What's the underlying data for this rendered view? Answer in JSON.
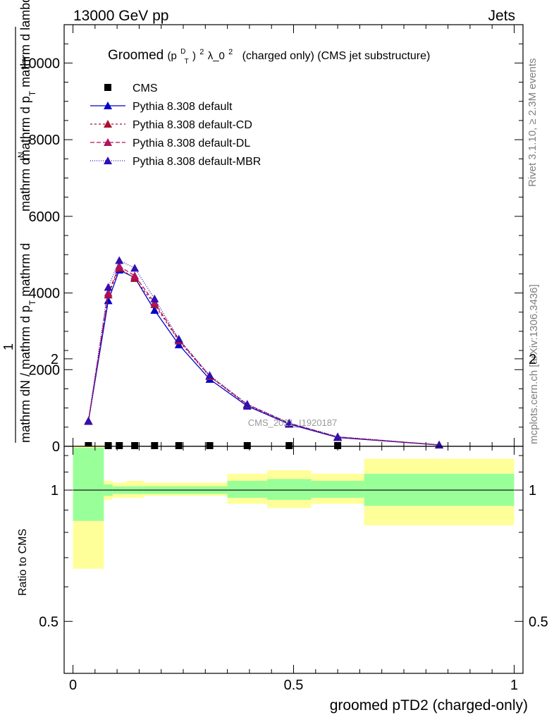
{
  "header": {
    "left": "13000 GeV pp",
    "right": "Jets"
  },
  "side_labels": {
    "rivet": "Rivet 3.1.10, ≥ 2.3M events",
    "mcplots": "mcplots.cern.ch [arXiv:1306.3436]"
  },
  "watermark": "CMS_2021_I1920187",
  "chart_data": [
    {
      "type": "line",
      "title_prefix": "Groomed",
      "title_math": "(p",
      "title_sup": "D",
      "title_sub": "T",
      "title_close": ")",
      "title_exp": "2",
      "title_lambda": "λ_0",
      "title_exp2": "2",
      "title_rest": "(charged only) (CMS jet substructure)",
      "ylabel_top_a": "mathrm d",
      "ylabel_top_b": "N",
      "ylabel_top_c": "mathrm d p",
      "ylabel_top_d": "T",
      "ylabel_top_e": " mathrm d lambda",
      "ylabel_one": "1",
      "ylabel_bottom": "mathrm dN / mathrm d p",
      "ylabel_bottom_sub": "T",
      "ylabel_bottom_tail": " mathrm d",
      "ylim": [
        0,
        11000
      ],
      "yticks": [
        0,
        2000,
        4000,
        6000,
        8000,
        10000
      ],
      "ytick_labels": [
        "0",
        "2000",
        "4000",
        "6000",
        "8000",
        "10000"
      ],
      "xlim": [
        -0.02,
        1.02
      ],
      "series": [
        {
          "name": "CMS",
          "color": "#000000",
          "marker": "square",
          "points": [
            [
              0.035,
              0
            ],
            [
              0.08,
              0
            ],
            [
              0.105,
              0
            ],
            [
              0.14,
              0
            ],
            [
              0.185,
              0
            ],
            [
              0.24,
              0
            ],
            [
              0.31,
              0
            ],
            [
              0.395,
              0
            ],
            [
              0.49,
              0
            ],
            [
              0.6,
              0
            ]
          ]
        },
        {
          "name": "Pythia 8.308 default",
          "color": "#0000cc",
          "dash": "",
          "marker": "triangle",
          "points": [
            [
              0.035,
              650
            ],
            [
              0.08,
              3800
            ],
            [
              0.105,
              4600
            ],
            [
              0.14,
              4400
            ],
            [
              0.185,
              3550
            ],
            [
              0.24,
              2650
            ],
            [
              0.31,
              1750
            ],
            [
              0.395,
              1050
            ],
            [
              0.49,
              580
            ],
            [
              0.6,
              230
            ],
            [
              0.83,
              35
            ]
          ]
        },
        {
          "name": "Pythia 8.308 default-CD",
          "color": "#aa1030",
          "dash": "3,3",
          "marker": "triangle",
          "points": [
            [
              0.035,
              660
            ],
            [
              0.08,
              3950
            ],
            [
              0.105,
              4650
            ],
            [
              0.14,
              4380
            ],
            [
              0.185,
              3700
            ],
            [
              0.24,
              2750
            ],
            [
              0.31,
              1820
            ],
            [
              0.395,
              1080
            ],
            [
              0.49,
              600
            ],
            [
              0.6,
              240
            ],
            [
              0.83,
              36
            ]
          ]
        },
        {
          "name": "Pythia 8.308 default-DL",
          "color": "#b0145a",
          "dash": "6,3",
          "marker": "triangle",
          "points": [
            [
              0.035,
              655
            ],
            [
              0.08,
              4000
            ],
            [
              0.105,
              4700
            ],
            [
              0.14,
              4450
            ],
            [
              0.185,
              3750
            ],
            [
              0.24,
              2780
            ],
            [
              0.31,
              1830
            ],
            [
              0.395,
              1090
            ],
            [
              0.49,
              605
            ],
            [
              0.6,
              245
            ],
            [
              0.83,
              37
            ]
          ]
        },
        {
          "name": "Pythia 8.308 default-MBR",
          "color": "#3010b0",
          "dash": "1,2",
          "marker": "triangle",
          "points": [
            [
              0.035,
              665
            ],
            [
              0.08,
              4150
            ],
            [
              0.105,
              4850
            ],
            [
              0.14,
              4650
            ],
            [
              0.185,
              3850
            ],
            [
              0.24,
              2800
            ],
            [
              0.31,
              1850
            ],
            [
              0.395,
              1100
            ],
            [
              0.49,
              610
            ],
            [
              0.6,
              250
            ],
            [
              0.83,
              38
            ]
          ]
        }
      ]
    },
    {
      "type": "area",
      "ylabel": "Ratio to CMS",
      "xlabel": "groomed pTD2 (charged-only)",
      "ylim": [
        0.38,
        1.26
      ],
      "xlim": [
        -0.02,
        1.02
      ],
      "yticks": [
        0.5,
        1,
        2
      ],
      "ytick_labels": [
        "0.5",
        "1",
        "2"
      ],
      "xticks": [
        0,
        0.5,
        1
      ],
      "xtick_labels": [
        "0",
        "0.5",
        "1"
      ],
      "reference_line": 1,
      "bands": [
        {
          "x0": 0.0,
          "x1": 0.07,
          "inner": [
            0.85,
            1.25
          ],
          "outer": [
            0.66,
            1.5
          ]
        },
        {
          "x0": 0.07,
          "x1": 0.09,
          "inner": [
            0.97,
            1.03
          ],
          "outer": [
            0.95,
            1.05
          ]
        },
        {
          "x0": 0.09,
          "x1": 0.12,
          "inner": [
            0.98,
            1.02
          ],
          "outer": [
            0.96,
            1.04
          ]
        },
        {
          "x0": 0.12,
          "x1": 0.16,
          "inner": [
            0.98,
            1.02
          ],
          "outer": [
            0.96,
            1.05
          ]
        },
        {
          "x0": 0.16,
          "x1": 0.21,
          "inner": [
            0.98,
            1.02
          ],
          "outer": [
            0.97,
            1.04
          ]
        },
        {
          "x0": 0.21,
          "x1": 0.27,
          "inner": [
            0.98,
            1.02
          ],
          "outer": [
            0.97,
            1.04
          ]
        },
        {
          "x0": 0.27,
          "x1": 0.35,
          "inner": [
            0.98,
            1.02
          ],
          "outer": [
            0.97,
            1.04
          ]
        },
        {
          "x0": 0.35,
          "x1": 0.44,
          "inner": [
            0.96,
            1.05
          ],
          "outer": [
            0.93,
            1.09
          ]
        },
        {
          "x0": 0.44,
          "x1": 0.54,
          "inner": [
            0.95,
            1.06
          ],
          "outer": [
            0.91,
            1.11
          ]
        },
        {
          "x0": 0.54,
          "x1": 0.66,
          "inner": [
            0.96,
            1.05
          ],
          "outer": [
            0.93,
            1.09
          ]
        },
        {
          "x0": 0.66,
          "x1": 1.0,
          "inner": [
            0.92,
            1.09
          ],
          "outer": [
            0.83,
            1.18
          ]
        }
      ]
    }
  ]
}
